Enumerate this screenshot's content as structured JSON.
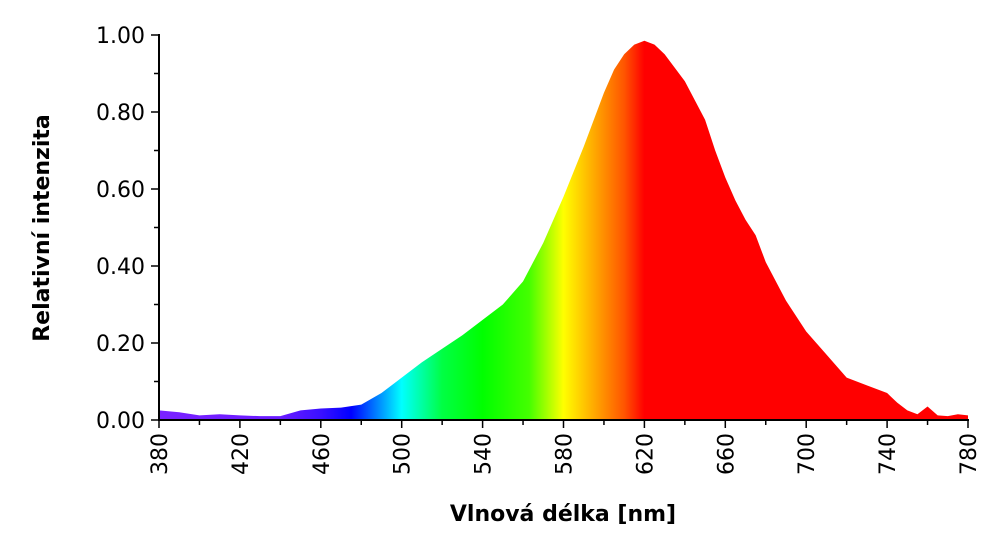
{
  "chart_data": {
    "type": "area",
    "title": "",
    "xlabel": "Vlnová délka [nm]",
    "ylabel": "Relativní intenzita",
    "xlim": [
      380,
      780
    ],
    "ylim": [
      0,
      1
    ],
    "x_ticks": [
      "380",
      "420",
      "460",
      "500",
      "540",
      "580",
      "620",
      "660",
      "700",
      "740",
      "780"
    ],
    "y_ticks": [
      "0.00",
      "0.20",
      "0.40",
      "0.60",
      "0.80",
      "1.00"
    ],
    "grid": false,
    "legend": "none",
    "fill": "visible spectrum gradient by wavelength",
    "spectrum_colors": [
      {
        "nm": 380,
        "color": "#7a22ff"
      },
      {
        "nm": 440,
        "color": "#6a1cff"
      },
      {
        "nm": 460,
        "color": "#3a10ff"
      },
      {
        "nm": 475,
        "color": "#0000ff"
      },
      {
        "nm": 490,
        "color": "#0099ff"
      },
      {
        "nm": 500,
        "color": "#00ffff"
      },
      {
        "nm": 520,
        "color": "#00ff44"
      },
      {
        "nm": 540,
        "color": "#00ff00"
      },
      {
        "nm": 563,
        "color": "#44ff00"
      },
      {
        "nm": 580,
        "color": "#ffff00"
      },
      {
        "nm": 595,
        "color": "#ffaa00"
      },
      {
        "nm": 610,
        "color": "#ff5500"
      },
      {
        "nm": 620,
        "color": "#ff0000"
      },
      {
        "nm": 780,
        "color": "#ff0000"
      }
    ],
    "x": [
      380,
      390,
      400,
      410,
      420,
      430,
      440,
      450,
      460,
      470,
      480,
      490,
      500,
      510,
      520,
      530,
      540,
      550,
      560,
      570,
      580,
      590,
      600,
      605,
      610,
      615,
      620,
      625,
      630,
      640,
      650,
      655,
      660,
      665,
      670,
      675,
      680,
      690,
      700,
      710,
      720,
      730,
      740,
      745,
      750,
      755,
      760,
      765,
      770,
      775,
      780
    ],
    "y": [
      0.025,
      0.02,
      0.012,
      0.015,
      0.012,
      0.01,
      0.01,
      0.025,
      0.03,
      0.032,
      0.04,
      0.07,
      0.11,
      0.15,
      0.185,
      0.22,
      0.26,
      0.3,
      0.36,
      0.46,
      0.58,
      0.71,
      0.85,
      0.91,
      0.95,
      0.975,
      0.985,
      0.975,
      0.95,
      0.88,
      0.78,
      0.7,
      0.63,
      0.57,
      0.52,
      0.48,
      0.41,
      0.31,
      0.23,
      0.17,
      0.11,
      0.09,
      0.07,
      0.045,
      0.025,
      0.015,
      0.035,
      0.012,
      0.01,
      0.015,
      0.012
    ]
  }
}
